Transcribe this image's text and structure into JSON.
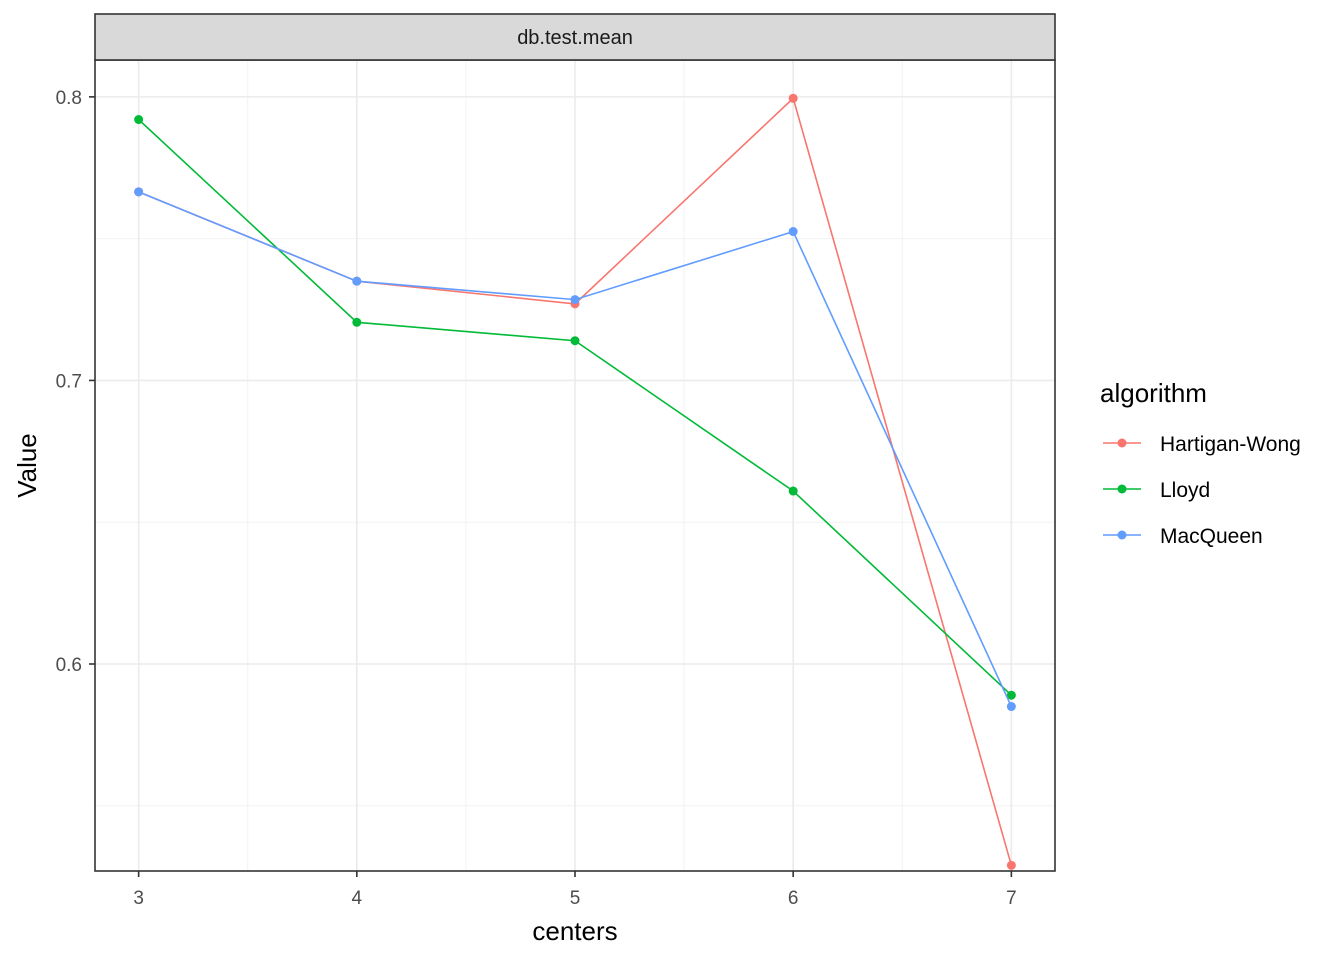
{
  "chart_data": {
    "type": "line",
    "facet_title": "db.test.mean",
    "xlabel": "centers",
    "ylabel": "Value",
    "x": [
      3,
      4,
      5,
      6,
      7
    ],
    "xlim": [
      2.8,
      7.2
    ],
    "ylim": [
      0.527,
      0.813
    ],
    "x_ticks": [
      3,
      4,
      5,
      6,
      7
    ],
    "y_ticks": [
      0.6,
      0.7,
      0.8
    ],
    "y_tick_labels": [
      "0.6",
      "0.7",
      "0.8"
    ],
    "grid": true,
    "legend": {
      "title": "algorithm",
      "placement": "right"
    },
    "series": [
      {
        "name": "Hartigan-Wong",
        "color": "#F8766D",
        "values": [
          0.7665,
          0.735,
          0.727,
          0.7995,
          0.529
        ]
      },
      {
        "name": "Lloyd",
        "color": "#00BA38",
        "values": [
          0.792,
          0.7205,
          0.714,
          0.661,
          0.589
        ]
      },
      {
        "name": "MacQueen",
        "color": "#619CFF",
        "values": [
          0.7665,
          0.735,
          0.7285,
          0.7525,
          0.585
        ]
      }
    ]
  }
}
